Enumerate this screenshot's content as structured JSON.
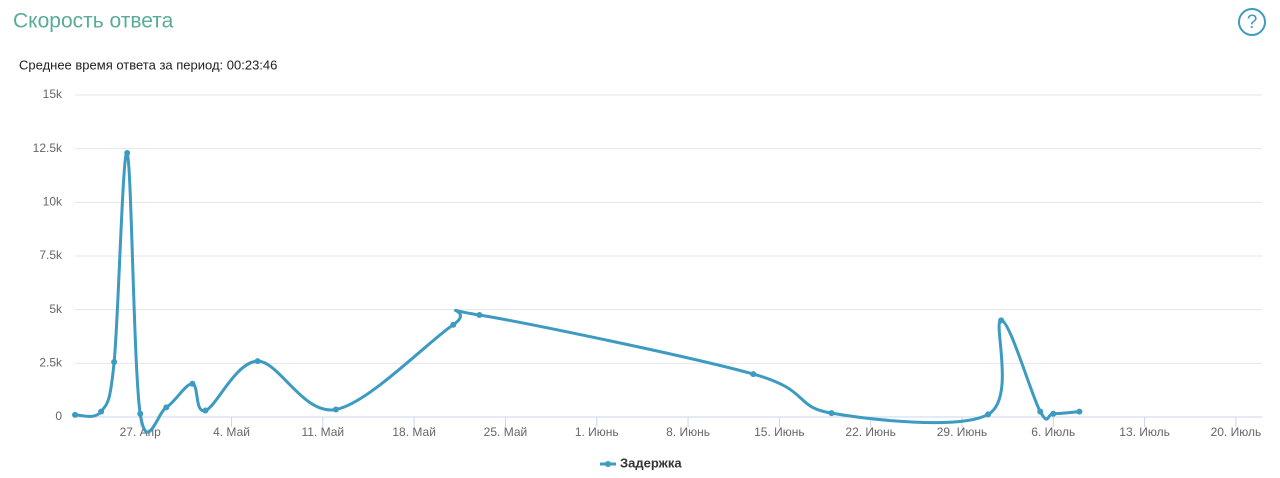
{
  "header": {
    "title": "Скорость ответа",
    "help": "?"
  },
  "chart_data": {
    "type": "line",
    "subtitle": "Среднее время ответа за период: 00:23:46",
    "x": [
      "04-22",
      "04-24",
      "04-25",
      "04-26",
      "04-27",
      "04-29",
      "05-01",
      "05-02",
      "05-06",
      "05-12",
      "05-21",
      "05-23",
      "06-13",
      "06-19",
      "07-01",
      "07-02",
      "07-05",
      "07-06",
      "07-08"
    ],
    "series": [
      {
        "name": "Задержка",
        "color": "#3d9ac0",
        "values": [
          100,
          250,
          2560,
          12300,
          150,
          450,
          1550,
          300,
          2600,
          350,
          4300,
          4750,
          2000,
          180,
          120,
          4500,
          250,
          150,
          250
        ]
      }
    ],
    "xlim": [
      "04-22",
      "07-22"
    ],
    "xticks": [
      {
        "value": "04-27",
        "label": "27. Апр"
      },
      {
        "value": "05-04",
        "label": "4. Май"
      },
      {
        "value": "05-11",
        "label": "11. Май"
      },
      {
        "value": "05-18",
        "label": "18. Май"
      },
      {
        "value": "05-25",
        "label": "25. Май"
      },
      {
        "value": "06-01",
        "label": "1. Июнь"
      },
      {
        "value": "06-08",
        "label": "8. Июнь"
      },
      {
        "value": "06-15",
        "label": "15. Июнь"
      },
      {
        "value": "06-22",
        "label": "22. Июнь"
      },
      {
        "value": "06-29",
        "label": "29. Июнь"
      },
      {
        "value": "07-06",
        "label": "6. Июль"
      },
      {
        "value": "07-13",
        "label": "13. Июль"
      },
      {
        "value": "07-20",
        "label": "20. Июль"
      }
    ],
    "ylim": [
      0,
      15000
    ],
    "yticks": [
      0,
      {
        "value": 2500,
        "label": "2.5k"
      },
      {
        "value": 5000,
        "label": "5k"
      },
      {
        "value": 7500,
        "label": "7.5k"
      },
      {
        "value": 10000,
        "label": "10k"
      },
      {
        "value": 12500,
        "label": "12.5k"
      },
      {
        "value": 15000,
        "label": "15k"
      }
    ],
    "grid": true,
    "smooth": true
  }
}
